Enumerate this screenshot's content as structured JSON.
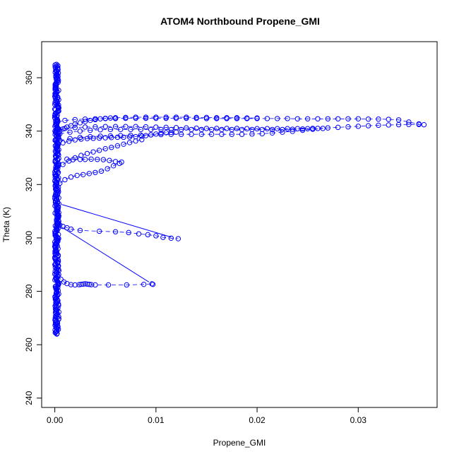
{
  "chart_data": {
    "type": "scatter",
    "title": "ATOM4 Northbound Propene_GMI",
    "xlabel": "Propene_GMI",
    "ylabel": "Theta (K)",
    "xlim": [
      -0.0013,
      0.0378
    ],
    "ylim": [
      236.5,
      373.5
    ],
    "x_ticks": [
      0,
      0.01,
      0.02,
      0.03
    ],
    "x_tick_labels": [
      "0.00",
      "0.01",
      "0.02",
      "0.03"
    ],
    "y_ticks": [
      240,
      260,
      280,
      300,
      320,
      340,
      360
    ],
    "y_tick_labels": [
      "240",
      "260",
      "280",
      "300",
      "320",
      "340",
      "360"
    ],
    "grid": false,
    "legend": "none",
    "marker": "open-circle",
    "color": "#0000ff",
    "series": [
      {
        "values_description_x": [
          0.0002,
          0.0003,
          0.0005,
          0.0008,
          0.0012,
          0.0016,
          0.002,
          0.0025,
          0.003,
          0.0035,
          0.004,
          0.0045,
          0.005,
          0.0055,
          0.006,
          0.007,
          0.008,
          0.009,
          0.01,
          0.011,
          0.012,
          0.013,
          0.014,
          0.015,
          0.016,
          0.017,
          0.018,
          0.019,
          0.02
        ],
        "x": [
          0.0002,
          0.0003,
          0.0005,
          0.0008,
          0.0012,
          0.0016,
          0.002,
          0.0025,
          0.003,
          0.0035,
          0.004,
          0.0045,
          0.005,
          0.0055,
          0.006,
          0.007,
          0.008,
          0.009,
          0.01,
          0.011,
          0.012,
          0.013,
          0.014,
          0.015,
          0.016,
          0.017,
          0.018,
          0.019,
          0.02
        ],
        "y": [
          338.5,
          339.2,
          340.1,
          340.8,
          341.5,
          342.0,
          342.6,
          343.1,
          343.6,
          344.0,
          344.3,
          344.6,
          344.8,
          344.9,
          345.0,
          345.1,
          345.2,
          345.2,
          345.2,
          345.2,
          345.2,
          345.2,
          345.1,
          345.1,
          345.0,
          345.0,
          345.0,
          344.9,
          344.9
        ]
      },
      {
        "x": [
          0.0003,
          0.001,
          0.002,
          0.003,
          0.004,
          0.005,
          0.006,
          0.007,
          0.008,
          0.009,
          0.01,
          0.011,
          0.012,
          0.013,
          0.014,
          0.015,
          0.016,
          0.017,
          0.018,
          0.019,
          0.02,
          0.021,
          0.022,
          0.023,
          0.024,
          0.025,
          0.026,
          0.027,
          0.028,
          0.029,
          0.03,
          0.031,
          0.032,
          0.033,
          0.034,
          0.035,
          0.036,
          0.0365
        ],
        "y": [
          340.5,
          341.0,
          341.3,
          341.5,
          341.6,
          341.7,
          341.7,
          341.7,
          341.7,
          341.6,
          341.5,
          341.4,
          341.3,
          341.2,
          341.1,
          341.0,
          341.0,
          341.0,
          341.0,
          340.9,
          340.9,
          340.9,
          340.9,
          340.9,
          340.9,
          340.9,
          341.0,
          341.2,
          341.4,
          341.6,
          341.8,
          342.0,
          342.2,
          342.3,
          342.4,
          342.5,
          342.5,
          342.4
        ]
      },
      {
        "x": [
          0.0003,
          0.001,
          0.002,
          0.003,
          0.004,
          0.005,
          0.006,
          0.007,
          0.008,
          0.009,
          0.01,
          0.011,
          0.012,
          0.013,
          0.014,
          0.015,
          0.016,
          0.017,
          0.018,
          0.019,
          0.02,
          0.021,
          0.022,
          0.023,
          0.024,
          0.025,
          0.026,
          0.027,
          0.028,
          0.029,
          0.03,
          0.031,
          0.032,
          0.033,
          0.034,
          0.035,
          0.036
        ],
        "y": [
          343.5,
          344.0,
          344.3,
          344.5,
          344.6,
          344.7,
          344.7,
          344.8,
          344.8,
          344.8,
          344.8,
          344.8,
          344.8,
          344.8,
          344.8,
          344.7,
          344.7,
          344.7,
          344.7,
          344.7,
          344.7,
          344.7,
          344.7,
          344.7,
          344.6,
          344.6,
          344.6,
          344.6,
          344.6,
          344.6,
          344.6,
          344.5,
          344.5,
          344.4,
          344.2,
          343.4,
          342.7
        ]
      },
      {
        "x": [
          0.0005,
          0.0015,
          0.0025,
          0.0035,
          0.0045,
          0.0055,
          0.0065,
          0.0075,
          0.0085,
          0.0095,
          0.0105,
          0.0115,
          0.0125,
          0.0135,
          0.0145,
          0.0155,
          0.0165,
          0.0175,
          0.0185,
          0.0195,
          0.0205,
          0.0215,
          0.0225,
          0.0235,
          0.0245,
          0.0255
        ],
        "y": [
          339.0,
          339.6,
          340.0,
          340.3,
          340.5,
          340.6,
          340.6,
          340.6,
          340.6,
          340.6,
          340.6,
          340.6,
          340.6,
          340.6,
          340.6,
          340.6,
          340.6,
          340.6,
          340.6,
          340.6,
          340.6,
          340.6,
          340.6,
          340.7,
          340.8,
          341.0
        ]
      },
      {
        "x": [
          0.0005,
          0.0015,
          0.0025,
          0.0035,
          0.0045,
          0.0055,
          0.0065,
          0.0075,
          0.0085,
          0.0095,
          0.0105,
          0.0115,
          0.0125,
          0.0135,
          0.0145,
          0.0155,
          0.0165,
          0.0175,
          0.0185,
          0.0195,
          0.0205,
          0.0215,
          0.0225,
          0.0235,
          0.0245,
          0.0255,
          0.0265
        ],
        "y": [
          336.5,
          337.2,
          337.6,
          337.9,
          338.1,
          338.2,
          338.3,
          338.4,
          338.5,
          338.6,
          338.7,
          338.8,
          338.8,
          338.8,
          338.8,
          338.8,
          338.8,
          338.8,
          338.8,
          338.9,
          339.0,
          339.3,
          339.6,
          339.9,
          340.3,
          340.7,
          341.0
        ]
      },
      {
        "x": [
          0.0003,
          0.0008,
          0.0014,
          0.002,
          0.0026,
          0.0032,
          0.0038,
          0.0044,
          0.005,
          0.0056,
          0.0062,
          0.0068,
          0.0074,
          0.008,
          0.0086,
          0.009,
          0.0095,
          0.01,
          0.0105,
          0.011,
          0.0115,
          0.012
        ],
        "y": [
          334.5,
          335.6,
          336.2,
          336.7,
          337.0,
          337.2,
          337.3,
          337.4,
          337.5,
          337.6,
          337.7,
          337.7,
          337.8,
          337.9,
          338.1,
          338.3,
          338.6,
          338.9,
          339.2,
          339.4,
          339.5,
          339.6
        ]
      },
      {
        "x": [
          0.0008,
          0.0014,
          0.002,
          0.0026,
          0.0032,
          0.0038,
          0.0044,
          0.005,
          0.0056,
          0.0062,
          0.0068,
          0.0074,
          0.008,
          0.0086
        ],
        "y": [
          327.5,
          328.8,
          330.0,
          330.9,
          331.6,
          332.2,
          332.8,
          333.4,
          333.9,
          334.5,
          335.1,
          335.7,
          336.3,
          336.8
        ]
      },
      {
        "x": [
          0.0012,
          0.0018,
          0.0025,
          0.003,
          0.0036,
          0.0042,
          0.0048,
          0.0054,
          0.006,
          0.0066
        ],
        "y": [
          329.5,
          329.3,
          329.4,
          329.4,
          329.5,
          329.4,
          329.3,
          329.0,
          328.6,
          328.4
        ]
      },
      {
        "x": [
          0.0005,
          0.001,
          0.0016,
          0.0022,
          0.0028,
          0.0034,
          0.004,
          0.0046,
          0.0052,
          0.0058,
          0.0064
        ],
        "y": [
          320.5,
          321.8,
          322.8,
          323.4,
          323.7,
          324.1,
          324.5,
          325.0,
          325.9,
          327.0,
          327.9
        ]
      },
      {
        "x": [
          0.0003,
          0.0005,
          0.0008,
          0.0012,
          0.0016,
          0.0025,
          0.0044,
          0.006,
          0.0073,
          0.0083,
          0.0092,
          0.01,
          0.0107,
          0.0115,
          0.0122
        ],
        "y": [
          305.5,
          304.8,
          304.3,
          303.8,
          303.3,
          302.8,
          302.5,
          302.3,
          302.0,
          301.5,
          301.2,
          300.8,
          300.2,
          299.9,
          299.7
        ]
      },
      {
        "x": [
          0.0003,
          0.0006,
          0.0009,
          0.0012,
          0.0016,
          0.002,
          0.0024,
          0.0026,
          0.0028,
          0.003,
          0.0032,
          0.0034,
          0.0036,
          0.004,
          0.0053,
          0.0071,
          0.0088,
          0.0096,
          0.0097
        ],
        "y": [
          285.5,
          284.5,
          283.5,
          282.9,
          282.5,
          282.4,
          282.5,
          282.6,
          282.7,
          282.8,
          282.7,
          282.6,
          282.5,
          282.4,
          282.4,
          282.4,
          282.6,
          282.8,
          282.6
        ]
      }
    ],
    "connecting_lines": [
      {
        "x": [
          0.0007,
          0.0115
        ],
        "y": [
          312.5,
          300.3
        ]
      },
      {
        "x": [
          0.0007,
          0.0093
        ],
        "y": [
          304.0,
          283.5
        ]
      }
    ],
    "vertical_cluster": {
      "x_min": 0.0,
      "x_max": 0.0004,
      "y_min": 264,
      "y_max": 365
    }
  }
}
